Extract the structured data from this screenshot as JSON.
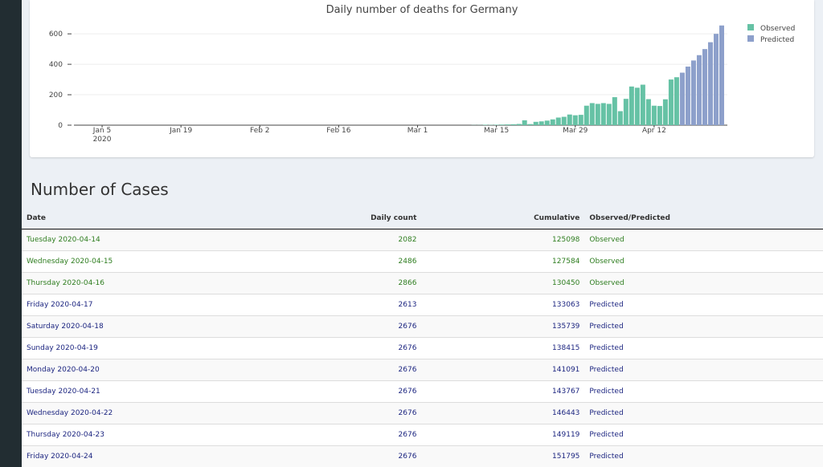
{
  "chart_data": {
    "type": "bar",
    "title": "Daily number of deaths for Germany",
    "x": [
      "2020-03-10",
      "2020-03-11",
      "2020-03-12",
      "2020-03-13",
      "2020-03-14",
      "2020-03-15",
      "2020-03-16",
      "2020-03-17",
      "2020-03-18",
      "2020-03-19",
      "2020-03-20",
      "2020-03-21",
      "2020-03-22",
      "2020-03-23",
      "2020-03-24",
      "2020-03-25",
      "2020-03-26",
      "2020-03-27",
      "2020-03-28",
      "2020-03-29",
      "2020-03-30",
      "2020-03-31",
      "2020-04-01",
      "2020-04-02",
      "2020-04-03",
      "2020-04-04",
      "2020-04-05",
      "2020-04-06",
      "2020-04-07",
      "2020-04-08",
      "2020-04-09",
      "2020-04-10",
      "2020-04-11",
      "2020-04-12",
      "2020-04-13",
      "2020-04-14",
      "2020-04-15",
      "2020-04-16",
      "2020-04-17",
      "2020-04-18",
      "2020-04-19",
      "2020-04-20",
      "2020-04-21",
      "2020-04-22",
      "2020-04-23",
      "2020-04-24"
    ],
    "series": [
      {
        "name": "Observed",
        "color": "#66c2a5",
        "values": [
          0,
          1,
          1,
          3,
          2,
          3,
          4,
          5,
          6,
          8,
          32,
          7,
          22,
          25,
          30,
          38,
          50,
          55,
          70,
          65,
          68,
          128,
          145,
          140,
          145,
          140,
          184,
          92,
          173,
          254,
          246,
          266,
          171,
          128,
          126,
          170,
          300,
          315,
          null,
          null,
          null,
          null,
          null,
          null,
          null,
          null
        ]
      },
      {
        "name": "Predicted",
        "color": "#8da0cb",
        "values": [
          null,
          null,
          null,
          null,
          null,
          null,
          null,
          null,
          null,
          null,
          null,
          null,
          null,
          null,
          null,
          null,
          null,
          null,
          null,
          null,
          null,
          null,
          null,
          null,
          null,
          null,
          null,
          null,
          null,
          null,
          null,
          null,
          null,
          null,
          null,
          null,
          null,
          null,
          345,
          385,
          425,
          460,
          500,
          545,
          600,
          655
        ]
      }
    ],
    "xlim": [
      "2019-12-31",
      "2020-04-25"
    ],
    "xticks": [
      {
        "value": "2020-01-05",
        "label": "Jan 5\n2020"
      },
      {
        "value": "2020-01-19",
        "label": "Jan 19"
      },
      {
        "value": "2020-02-02",
        "label": "Feb 2"
      },
      {
        "value": "2020-02-16",
        "label": "Feb 16"
      },
      {
        "value": "2020-03-01",
        "label": "Mar 1"
      },
      {
        "value": "2020-03-15",
        "label": "Mar 15"
      },
      {
        "value": "2020-03-29",
        "label": "Mar 29"
      },
      {
        "value": "2020-04-12",
        "label": "Apr 12"
      }
    ],
    "ylim": [
      0,
      680
    ],
    "yticks": [
      0,
      200,
      400,
      600
    ],
    "grid": true,
    "legend": "top-right"
  },
  "section_title": "Number of Cases",
  "table": {
    "columns": [
      "Date",
      "Daily count",
      "Cumulative",
      "Observed/Predicted"
    ],
    "status_colors": {
      "Observed": "#2e7d1f",
      "Predicted": "#1c2580"
    },
    "rows": [
      [
        "Tuesday 2020-04-14",
        2082,
        125098,
        "Observed"
      ],
      [
        "Wednesday 2020-04-15",
        2486,
        127584,
        "Observed"
      ],
      [
        "Thursday 2020-04-16",
        2866,
        130450,
        "Observed"
      ],
      [
        "Friday 2020-04-17",
        2613,
        133063,
        "Predicted"
      ],
      [
        "Saturday 2020-04-18",
        2676,
        135739,
        "Predicted"
      ],
      [
        "Sunday 2020-04-19",
        2676,
        138415,
        "Predicted"
      ],
      [
        "Monday 2020-04-20",
        2676,
        141091,
        "Predicted"
      ],
      [
        "Tuesday 2020-04-21",
        2676,
        143767,
        "Predicted"
      ],
      [
        "Wednesday 2020-04-22",
        2676,
        146443,
        "Predicted"
      ],
      [
        "Thursday 2020-04-23",
        2676,
        149119,
        "Predicted"
      ],
      [
        "Friday 2020-04-24",
        2676,
        151795,
        "Predicted"
      ]
    ]
  }
}
